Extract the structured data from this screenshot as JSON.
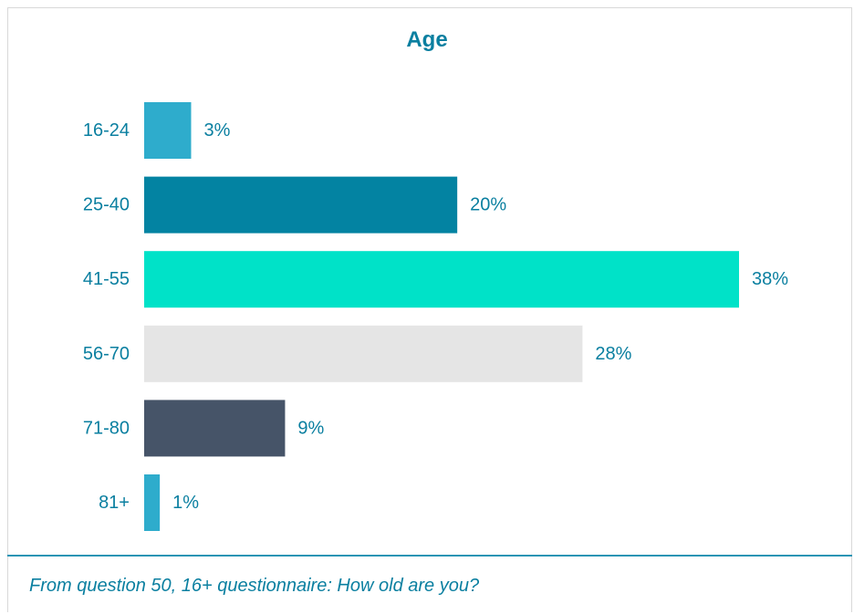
{
  "colors": {
    "title": "#0a7fa0",
    "text": "#0a7fa0",
    "divider": "#2a94b4",
    "frame": "#d9d9d9"
  },
  "chart_data": {
    "type": "bar",
    "orientation": "horizontal",
    "title": "Age",
    "categories": [
      "16-24",
      "25-40",
      "41-55",
      "56-70",
      "71-80",
      "81+"
    ],
    "values": [
      3,
      20,
      38,
      28,
      9,
      1
    ],
    "value_labels": [
      "3%",
      "20%",
      "38%",
      "28%",
      "9%",
      "1%"
    ],
    "bar_colors": [
      "#2eaccc",
      "#0383a2",
      "#00e2c8",
      "#e5e5e5",
      "#465468",
      "#2eaccc"
    ],
    "xlim": [
      0,
      38
    ],
    "unit": "%",
    "grid": false,
    "legend": "none"
  },
  "footnote": "From question 50, 16+ questionnaire: How old are you?"
}
